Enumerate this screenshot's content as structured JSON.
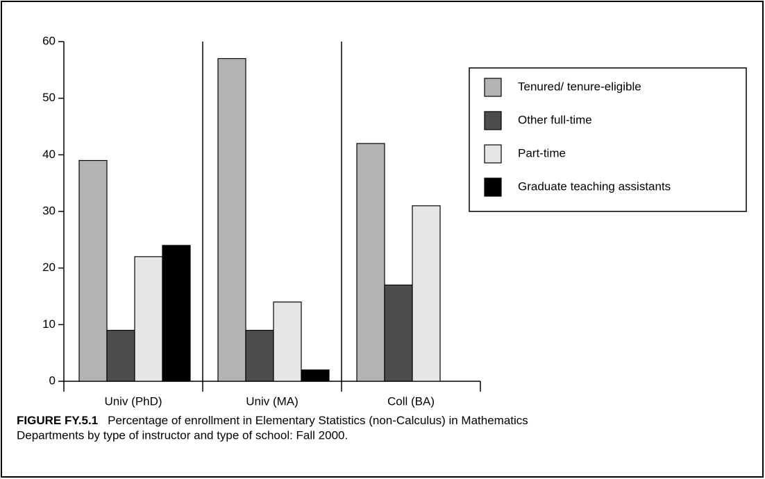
{
  "chart_data": {
    "type": "bar",
    "categories": [
      "Univ (PhD)",
      "Univ (MA)",
      "Coll (BA)"
    ],
    "series": [
      {
        "name": "Tenured/ tenure-eligible",
        "color": "#b3b3b3",
        "values": [
          39,
          57,
          42
        ]
      },
      {
        "name": "Other full-time",
        "color": "#4d4d4d",
        "values": [
          9,
          9,
          17
        ]
      },
      {
        "name": "Part-time",
        "color": "#e6e6e6",
        "values": [
          22,
          14,
          31
        ]
      },
      {
        "name": "Graduate teaching assistants",
        "color": "#000000",
        "values": [
          24,
          2,
          null
        ]
      }
    ],
    "ylim": [
      0,
      60
    ],
    "yticks": [
      0,
      10,
      20,
      30,
      40,
      50,
      60
    ],
    "legend": "upper right",
    "caption": {
      "label": "FIGURE FY.5.1",
      "lines": [
        "Percentage of enrollment in Elementary Statistics (non-Calculus) in Mathematics",
        "Departments by type of instructor and type of school: Fall 2000."
      ]
    }
  }
}
